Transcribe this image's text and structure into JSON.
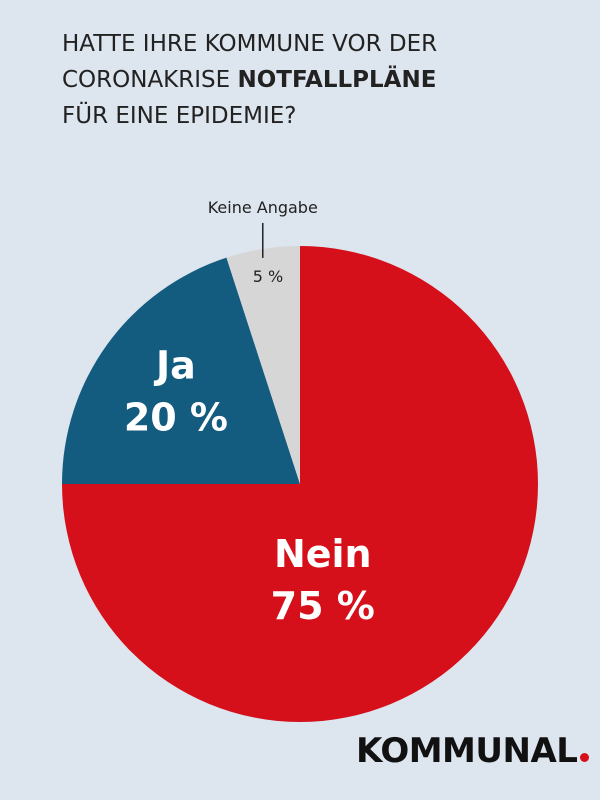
{
  "title": {
    "line1": "HATTE IHRE KOMMUNE VOR DER",
    "line2_prefix": "CORONAKRISE ",
    "line2_bold": "NOTFALLPLÄNE",
    "line3": "FÜR EINE EPIDEMIE?"
  },
  "chart_data": {
    "type": "pie",
    "title": "HATTE IHRE KOMMUNE VOR DER CORONAKRISE NOTFALLPLÄNE FÜR EINE EPIDEMIE?",
    "slices": [
      {
        "label": "Nein",
        "value": 75,
        "value_label": "75 %",
        "color": "#d5101b"
      },
      {
        "label": "Ja",
        "value": 20,
        "value_label": "20 %",
        "color": "#145b80"
      },
      {
        "label": "Keine Angabe",
        "value": 5,
        "value_label": "5 %",
        "color": "#d6d6d6"
      }
    ]
  },
  "logo": {
    "text": "KOMMUNAL",
    "dot_color": "#d5101b"
  }
}
